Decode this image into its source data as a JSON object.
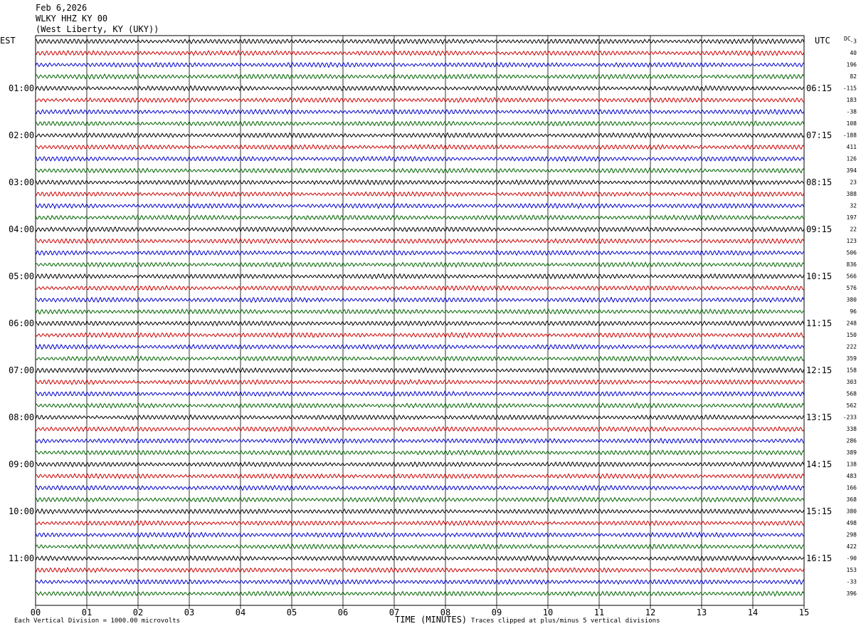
{
  "header": {
    "date": "Feb 6,2026",
    "station": "WLKY HHZ KY 00",
    "location": "(West Liberty, KY (UKY))"
  },
  "left_axis_title": "EST",
  "right_axis_title": "UTC",
  "dc_title": "DC",
  "footer": {
    "left_note": "Each Vertical Division = 1000.00 microvolts",
    "x_title": "TIME (MINUTES)",
    "right_note": "Traces clipped at plus/minus 5 vertical divisions"
  },
  "chart_data": {
    "type": "line",
    "title": "WLKY HHZ KY 00",
    "xlabel": "TIME (MINUTES)",
    "xlim": [
      0,
      15
    ],
    "x_ticks": [
      "00",
      "01",
      "02",
      "03",
      "04",
      "05",
      "06",
      "07",
      "08",
      "09",
      "10",
      "11",
      "12",
      "13",
      "14",
      "15"
    ],
    "trace_colors": [
      "#000000",
      "#cc0000",
      "#0000cc",
      "#006400"
    ],
    "rows_per_hour": 4,
    "est_labels": [
      "",
      "01:00",
      "02:00",
      "03:00",
      "04:00",
      "05:00",
      "06:00",
      "07:00",
      "08:00",
      "09:00",
      "10:00",
      "11:00"
    ],
    "utc_labels": [
      "",
      "06:15",
      "07:15",
      "08:15",
      "09:15",
      "10:15",
      "11:15",
      "12:15",
      "13:15",
      "14:15",
      "15:15",
      "16:15"
    ],
    "dc_offsets": [
      "-3",
      "40",
      "196",
      "82",
      "-115",
      "183",
      "-38",
      "108",
      "-188",
      "411",
      "126",
      "394",
      "23",
      "388",
      "32",
      "197",
      "22",
      "123",
      "506",
      "836",
      "566",
      "576",
      "380",
      "96",
      "248",
      "150",
      "222",
      "359",
      "158",
      "303",
      "568",
      "562",
      "-233",
      "338",
      "286",
      "389",
      "138",
      "483",
      "166",
      "368",
      "380",
      "498",
      "298",
      "422",
      "-90",
      "153",
      "-33",
      "396"
    ]
  }
}
